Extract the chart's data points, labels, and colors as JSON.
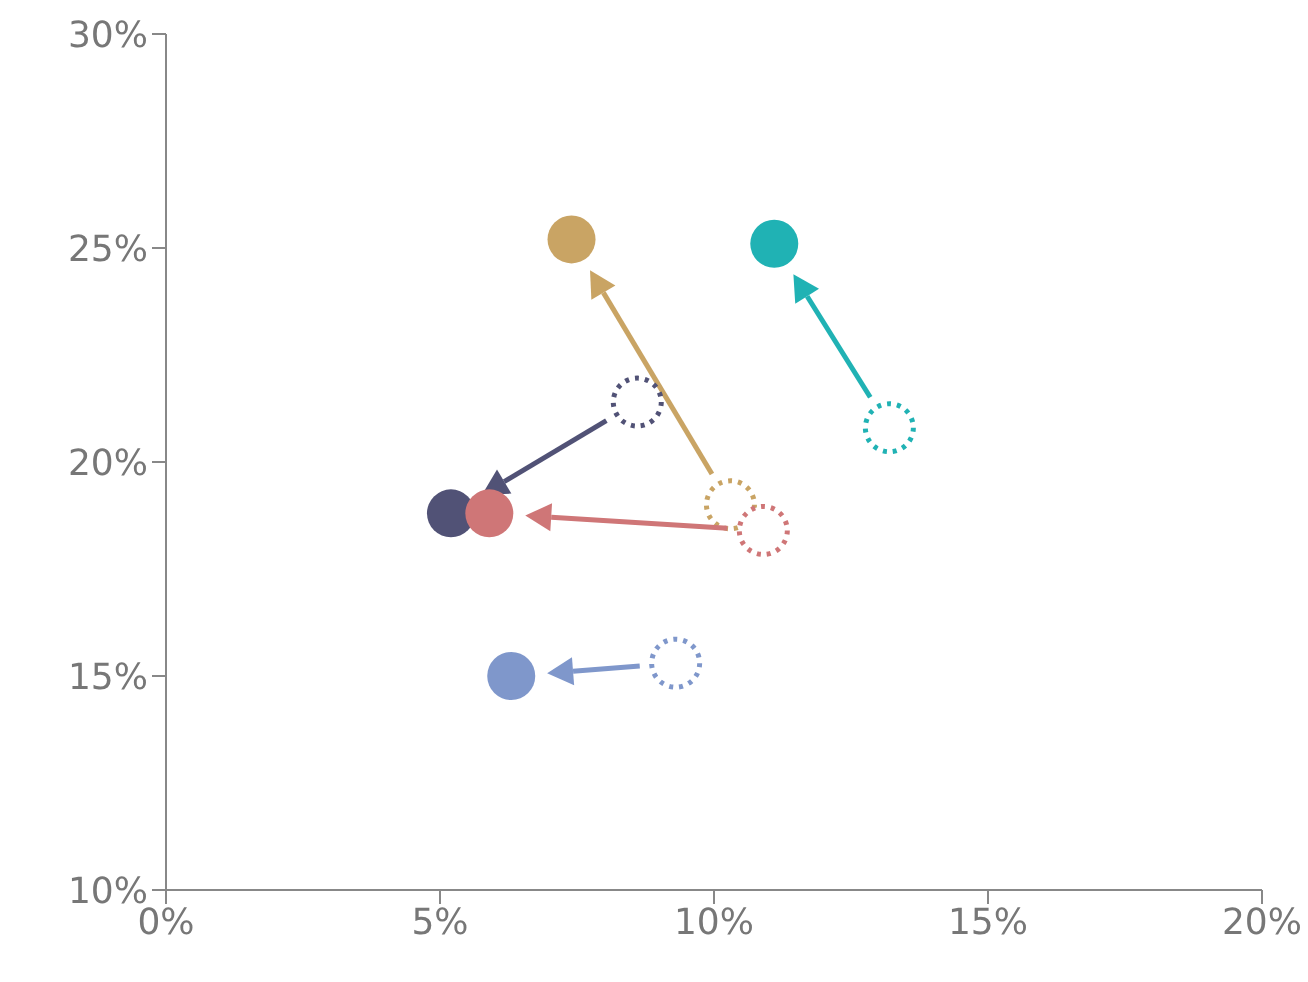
{
  "chart_data": {
    "type": "scatter",
    "marker": "circle",
    "xlim": [
      0,
      20
    ],
    "xticks": [
      {
        "value": 0,
        "label": "0%"
      },
      {
        "value": 5,
        "label": "5%"
      },
      {
        "value": 10,
        "label": "10%"
      },
      {
        "value": 15,
        "label": "15%"
      },
      {
        "value": 20,
        "label": "20%"
      }
    ],
    "ylim": [
      10,
      30
    ],
    "yticks": [
      {
        "value": 10,
        "label": "10%"
      },
      {
        "value": 15,
        "label": "15%"
      },
      {
        "value": 20,
        "label": "20%"
      },
      {
        "value": 25,
        "label": "25%"
      },
      {
        "value": 30,
        "label": "30%"
      }
    ],
    "series": [
      {
        "color": "#c9a464",
        "x": [
          10.3,
          7.4
        ],
        "values": [
          19.0,
          25.2
        ]
      },
      {
        "color": "#20b2b4",
        "x": [
          13.2,
          11.1
        ],
        "values": [
          20.8,
          25.1
        ]
      },
      {
        "color": "#515276",
        "x": [
          8.6,
          5.2
        ],
        "values": [
          21.4,
          18.8
        ]
      },
      {
        "color": "#cf7677",
        "x": [
          10.9,
          5.9
        ],
        "values": [
          18.4,
          18.8
        ]
      },
      {
        "color": "#7f97cb",
        "x": [
          9.3,
          6.3
        ],
        "values": [
          15.3,
          15.0
        ]
      }
    ]
  }
}
